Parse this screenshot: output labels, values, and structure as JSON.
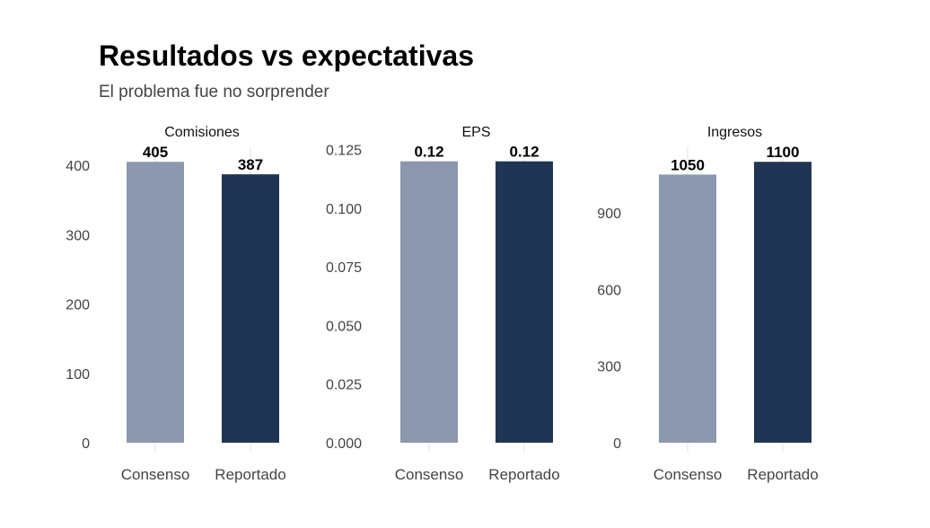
{
  "title": "Resultados vs expectativas",
  "subtitle": "El problema fue no sorprender",
  "colors": {
    "Consenso": "#8c98ae",
    "Reportado": "#1f3554"
  },
  "chart_data": [
    {
      "type": "bar",
      "title": "Comisiones",
      "categories": [
        "Consenso",
        "Reportado"
      ],
      "values": [
        405,
        387
      ],
      "labels": [
        "405",
        "387"
      ],
      "ylim": [
        0,
        426
      ],
      "yticks": [
        0,
        100,
        200,
        300,
        400
      ],
      "ytick_labels": [
        "0",
        "100",
        "200",
        "300",
        "400"
      ]
    },
    {
      "type": "bar",
      "title": "EPS",
      "categories": [
        "Consenso",
        "Reportado"
      ],
      "values": [
        0.12,
        0.12
      ],
      "labels": [
        "0.12",
        "0.12"
      ],
      "ylim": [
        0,
        0.126
      ],
      "yticks": [
        0,
        0.025,
        0.05,
        0.075,
        0.1,
        0.125
      ],
      "ytick_labels": [
        "0.000",
        "0.025",
        "0.050",
        "0.075",
        "0.100",
        "0.125"
      ]
    },
    {
      "type": "bar",
      "title": "Ingresos",
      "categories": [
        "Consenso",
        "Reportado"
      ],
      "values": [
        1050,
        1100
      ],
      "labels": [
        "1050",
        "1100"
      ],
      "ylim": [
        0,
        1157
      ],
      "yticks": [
        0,
        300,
        600,
        900
      ],
      "ytick_labels": [
        "0",
        "300",
        "600",
        "900"
      ]
    }
  ]
}
